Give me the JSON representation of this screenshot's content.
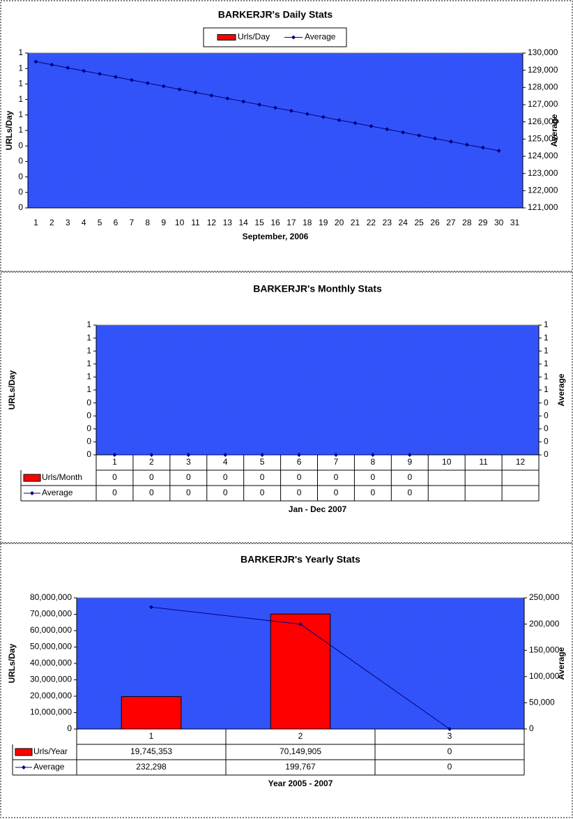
{
  "chart_data": [
    {
      "type": "bar",
      "title": "BARKERJR's Daily Stats",
      "x_label": "September, 2006",
      "y_label": "URLs/Day",
      "y2_label": "Average",
      "legend": "top",
      "data_table": false,
      "categories": [
        "1",
        "2",
        "3",
        "4",
        "5",
        "6",
        "7",
        "8",
        "9",
        "10",
        "11",
        "12",
        "13",
        "14",
        "15",
        "16",
        "17",
        "18",
        "19",
        "20",
        "21",
        "22",
        "23",
        "24",
        "25",
        "26",
        "27",
        "28",
        "29",
        "30",
        "31"
      ],
      "series": [
        {
          "name": "Urls/Day",
          "type": "bar",
          "color": "#ff0000",
          "axis": "y",
          "values": [
            0,
            0,
            0,
            0,
            0,
            0,
            0,
            0,
            0,
            0,
            0,
            0,
            0,
            0,
            0,
            0,
            0,
            0,
            0,
            0,
            0,
            0,
            0,
            0,
            0,
            0,
            0,
            0,
            0,
            0,
            null
          ]
        },
        {
          "name": "Average",
          "type": "line",
          "color": "#000080",
          "axis": "y2",
          "values": [
            129500,
            129320,
            129140,
            128960,
            128790,
            128610,
            128430,
            128250,
            128070,
            127890,
            127710,
            127530,
            127360,
            127180,
            127000,
            126820,
            126640,
            126460,
            126280,
            126100,
            125930,
            125750,
            125570,
            125390,
            125210,
            125030,
            124850,
            124670,
            124500,
            124320,
            null
          ]
        }
      ],
      "ylim": [
        0,
        1
      ],
      "yticks": [
        0,
        {
          "value": 0.1,
          "label": "0"
        },
        {
          "value": 0.2,
          "label": "0"
        },
        {
          "value": 0.3,
          "label": "0"
        },
        {
          "value": 0.4,
          "label": "0"
        },
        {
          "value": 0.5,
          "label": "1"
        },
        {
          "value": 0.6,
          "label": "1"
        },
        {
          "value": 0.7,
          "label": "1"
        },
        {
          "value": 0.8,
          "label": "1"
        },
        {
          "value": 0.9,
          "label": "1"
        },
        1
      ],
      "y2lim": [
        121000,
        130000
      ],
      "y2ticks": [
        {
          "value": 121000,
          "label": "121,000"
        },
        {
          "value": 122000,
          "label": "122,000"
        },
        {
          "value": 123000,
          "label": "123,000"
        },
        {
          "value": 124000,
          "label": "124,000"
        },
        {
          "value": 125000,
          "label": "125,000"
        },
        {
          "value": 126000,
          "label": "126,000"
        },
        {
          "value": 127000,
          "label": "127,000"
        },
        {
          "value": 128000,
          "label": "128,000"
        },
        {
          "value": 129000,
          "label": "129,000"
        },
        {
          "value": 130000,
          "label": "130,000"
        }
      ],
      "grid": false
    },
    {
      "type": "bar",
      "title": "BARKERJR's Monthly Stats",
      "x_label": "Jan - Dec 2007",
      "y_label": "URLs/Day",
      "y2_label": "Average",
      "legend": "table",
      "data_table": true,
      "categories": [
        "1",
        "2",
        "3",
        "4",
        "5",
        "6",
        "7",
        "8",
        "9",
        "10",
        "11",
        "12"
      ],
      "series": [
        {
          "name": "Urls/Month",
          "type": "bar",
          "color": "#ff0000",
          "axis": "y",
          "values": [
            0,
            0,
            0,
            0,
            0,
            0,
            0,
            0,
            0,
            null,
            null,
            null
          ]
        },
        {
          "name": "Average",
          "type": "line",
          "color": "#000080",
          "axis": "y2",
          "values": [
            0,
            0,
            0,
            0,
            0,
            0,
            0,
            0,
            0,
            null,
            null,
            null
          ]
        }
      ],
      "ylim": [
        0,
        1
      ],
      "yticks": [
        0,
        {
          "value": 0.1,
          "label": "0"
        },
        {
          "value": 0.2,
          "label": "0"
        },
        {
          "value": 0.3,
          "label": "0"
        },
        {
          "value": 0.4,
          "label": "0"
        },
        {
          "value": 0.5,
          "label": "1"
        },
        {
          "value": 0.6,
          "label": "1"
        },
        {
          "value": 0.7,
          "label": "1"
        },
        {
          "value": 0.8,
          "label": "1"
        },
        {
          "value": 0.9,
          "label": "1"
        },
        1
      ],
      "y2lim": [
        0,
        1
      ],
      "y2ticks": [
        0,
        {
          "value": 0.1,
          "label": "0"
        },
        {
          "value": 0.2,
          "label": "0"
        },
        {
          "value": 0.3,
          "label": "0"
        },
        {
          "value": 0.4,
          "label": "0"
        },
        {
          "value": 0.5,
          "label": "1"
        },
        {
          "value": 0.6,
          "label": "1"
        },
        {
          "value": 0.7,
          "label": "1"
        },
        {
          "value": 0.8,
          "label": "1"
        },
        {
          "value": 0.9,
          "label": "1"
        },
        1
      ],
      "grid": false
    },
    {
      "type": "bar",
      "title": "BARKERJR's Yearly Stats",
      "x_label": "Year 2005 - 2007",
      "y_label": "URLs/Day",
      "y2_label": "Average",
      "legend": "table",
      "data_table": true,
      "categories": [
        "1",
        "2",
        "3"
      ],
      "series": [
        {
          "name": "Urls/Year",
          "type": "bar",
          "color": "#ff0000",
          "axis": "y",
          "values": [
            19745353,
            70149905,
            0
          ],
          "value_labels": [
            "19,745,353",
            "70,149,905",
            "0"
          ]
        },
        {
          "name": "Average",
          "type": "line",
          "color": "#000080",
          "axis": "y2",
          "values": [
            232298,
            199767,
            0
          ],
          "value_labels": [
            "232,298",
            "199,767",
            "0"
          ]
        }
      ],
      "ylim": [
        0,
        80000000
      ],
      "yticks": [
        0,
        {
          "value": 10000000,
          "label": "10,000,000"
        },
        {
          "value": 20000000,
          "label": "20,000,000"
        },
        {
          "value": 30000000,
          "label": "30,000,000"
        },
        {
          "value": 40000000,
          "label": "40,000,000"
        },
        {
          "value": 50000000,
          "label": "50,000,000"
        },
        {
          "value": 60000000,
          "label": "60,000,000"
        },
        {
          "value": 70000000,
          "label": "70,000,000"
        },
        {
          "value": 80000000,
          "label": "80,000,000"
        }
      ],
      "y2lim": [
        0,
        250000
      ],
      "y2ticks": [
        0,
        {
          "value": 50000,
          "label": "50,000"
        },
        {
          "value": 100000,
          "label": "100,000"
        },
        {
          "value": 150000,
          "label": "150,000"
        },
        {
          "value": 200000,
          "label": "200,000"
        },
        {
          "value": 250000,
          "label": "250,000"
        }
      ],
      "grid": false
    }
  ]
}
